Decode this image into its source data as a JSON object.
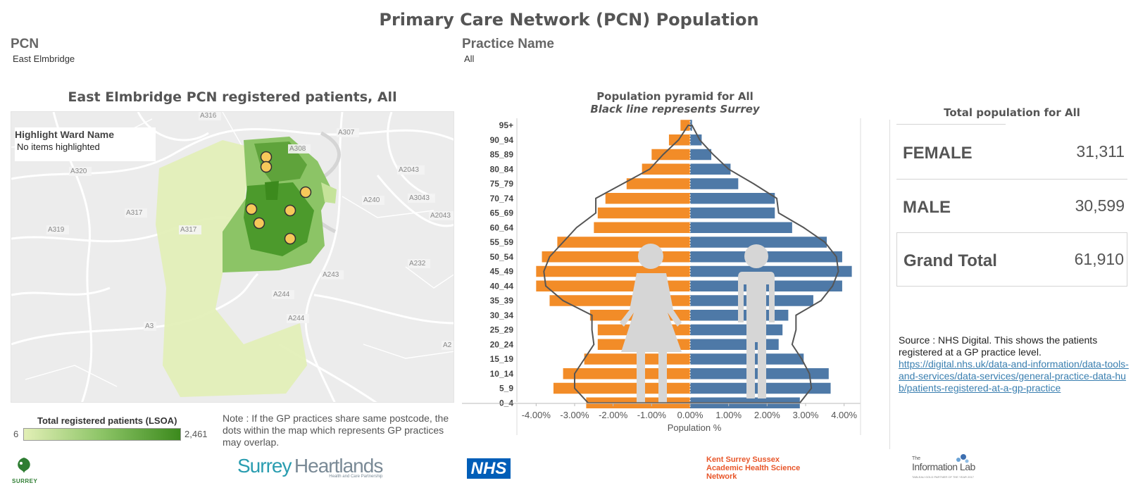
{
  "title": "Primary Care Network (PCN) Population",
  "filters": {
    "pcn": {
      "label": "PCN",
      "value": "East Elmbridge"
    },
    "practice": {
      "label": "Practice Name",
      "value": "All"
    }
  },
  "map": {
    "title": "East Elmbridge PCN registered patients, All",
    "highlight_label": "Highlight Ward Name",
    "highlight_value": "No items highlighted",
    "road_labels": [
      "A316",
      "A307",
      "A308",
      "A320",
      "A2043",
      "A3043",
      "A240",
      "A317",
      "A2043",
      "A319",
      "A317",
      "A232",
      "A243",
      "A244",
      "A244",
      "A3",
      "A2"
    ],
    "legend": {
      "title": "Total registered patients (LSOA)",
      "min": "6",
      "max": "2,461"
    },
    "colors": {
      "light": "#e2efb6",
      "mid": "#8cc466",
      "dark": "#3c8a1d",
      "dot": "#f7c85a"
    },
    "note": "Note : If the GP practices share same postcode, the dots within the map which represents GP practices may overlap."
  },
  "pyramid": {
    "title": "Population pyramid for All",
    "subtitle": "Black line represents Surrey",
    "xlabel": "Population %",
    "female_color": "#f28c28",
    "male_color": "#4e79a7"
  },
  "chart_data": {
    "type": "bar",
    "orientation": "horizontal-diverging",
    "categories": [
      "95+",
      "90_94",
      "85_89",
      "80_84",
      "75_79",
      "70_74",
      "65_69",
      "60_64",
      "55_59",
      "50_54",
      "45_49",
      "40_44",
      "35_39",
      "30_34",
      "25_29",
      "20_24",
      "15_19",
      "10_14",
      "5_9",
      "0_4"
    ],
    "series": [
      {
        "values": [
          -0.25,
          -0.55,
          -1.0,
          -1.25,
          -1.65,
          -2.2,
          -2.4,
          -2.5,
          -3.45,
          -3.85,
          -4.0,
          -4.0,
          -3.65,
          -2.6,
          -2.4,
          -2.4,
          -2.75,
          -3.3,
          -3.55,
          -2.7
        ]
      },
      {
        "values": [
          0.05,
          0.3,
          0.55,
          1.05,
          1.25,
          2.2,
          2.2,
          2.65,
          3.55,
          3.95,
          4.2,
          3.95,
          3.2,
          2.55,
          2.4,
          2.3,
          2.95,
          3.6,
          3.65,
          2.85
        ]
      }
    ],
    "reference_line": {
      "male": [
        0.05,
        0.25,
        0.6,
        1.0,
        1.65,
        2.25,
        2.3,
        2.95,
        3.5,
        3.8,
        3.85,
        3.7,
        3.4,
        2.75,
        2.75,
        2.65,
        2.9,
        3.1,
        3.15,
        2.85
      ],
      "female": [
        -0.05,
        -0.3,
        -0.7,
        -1.05,
        -1.75,
        -2.45,
        -2.45,
        -2.95,
        -3.3,
        -3.65,
        -3.8,
        -3.75,
        -3.3,
        -2.55,
        -2.55,
        -2.5,
        -2.75,
        -3.0,
        -3.0,
        -2.65
      ]
    },
    "xticks": [
      "-4.00%",
      "-3.00%",
      "-2.00%",
      "-1.00%",
      "0.00%",
      "1.00%",
      "2.00%",
      "3.00%",
      "4.00%"
    ],
    "xlim": [
      -4.5,
      4.5
    ],
    "xlabel": "Population %"
  },
  "totals": {
    "title": "Total population for All",
    "rows": [
      {
        "label": "FEMALE",
        "value": "31,311"
      },
      {
        "label": "MALE",
        "value": "30,599"
      },
      {
        "label": "Grand Total",
        "value": "61,910"
      }
    ]
  },
  "source": {
    "text": "Source : NHS Digital. This shows the patients registered at a GP practice level.",
    "link": "https://digital.nhs.uk/data-and-information/data-tools-and-services/data-services/general-practice-data-hub/patients-registered-at-a-gp-practice"
  },
  "logos": {
    "surrey": "SURREY",
    "heartlands_a": "Surrey",
    "heartlands_b": "Heartlands",
    "heartlands_tag": "Health and Care Partnership",
    "nhs": "NHS",
    "kss_1": "Kent Surrey Sussex",
    "kss_2": "Academic Health Science",
    "kss_3": "Network",
    "infolab_the": "The",
    "infolab": "Information Lab",
    "infolab_tag": "TABLEAU GOLD PARTNER OF THE YEAR 2017"
  }
}
